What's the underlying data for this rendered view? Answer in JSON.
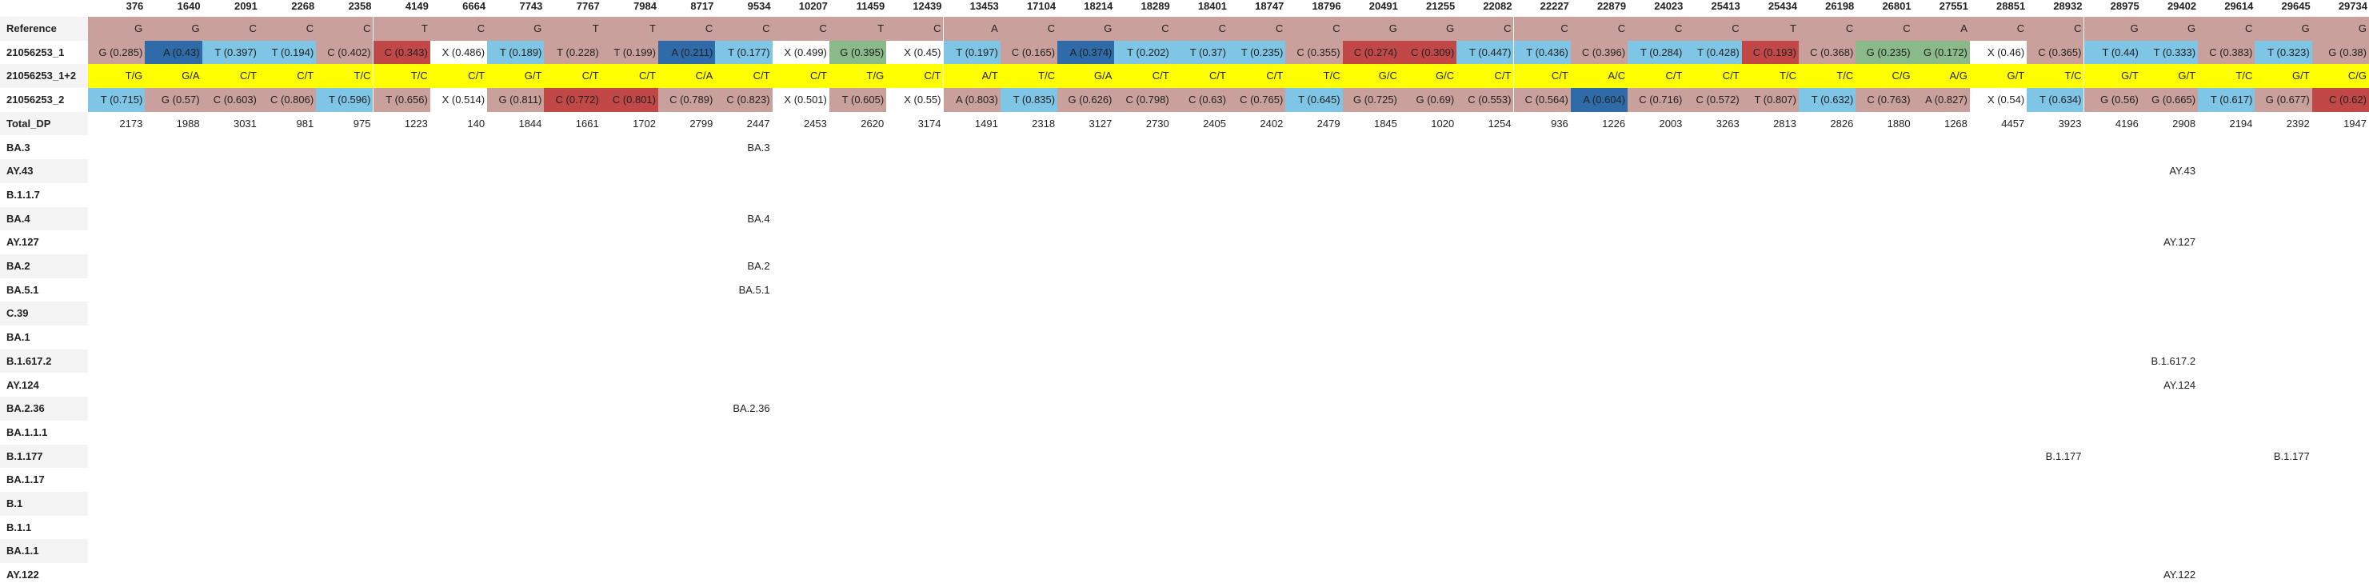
{
  "positions": [
    "376",
    "1640",
    "2091",
    "2268",
    "2358",
    "4149",
    "6664",
    "7743",
    "7767",
    "7984",
    "8717",
    "9534",
    "10207",
    "11459",
    "12439",
    "13453",
    "17104",
    "18214",
    "18289",
    "18401",
    "18747",
    "18796",
    "20491",
    "21255",
    "22082",
    "22227",
    "22879",
    "24023",
    "25413",
    "25434",
    "26198",
    "26801",
    "27551",
    "28851",
    "28932",
    "28975",
    "29402",
    "29614",
    "29645",
    "29734"
  ],
  "reference": {
    "label": "Reference",
    "bases": [
      "G",
      "G",
      "C",
      "C",
      "C",
      "T",
      "C",
      "G",
      "T",
      "T",
      "C",
      "C",
      "C",
      "T",
      "C",
      "A",
      "C",
      "G",
      "C",
      "C",
      "C",
      "C",
      "G",
      "G",
      "C",
      "C",
      "C",
      "C",
      "C",
      "T",
      "C",
      "C",
      "A",
      "C",
      "C",
      "G",
      "G",
      "C",
      "G",
      "G"
    ]
  },
  "sample1": {
    "label": "21056253_1",
    "cells": [
      "G (0.285)",
      "A (0.43)",
      "T (0.397)",
      "T (0.194)",
      "C (0.402)",
      "C (0.343)",
      "X (0.486)",
      "T (0.189)",
      "T (0.228)",
      "T (0.199)",
      "A (0.211)",
      "T (0.177)",
      "X (0.499)",
      "G (0.395)",
      "X (0.45)",
      "T (0.197)",
      "C (0.165)",
      "A (0.374)",
      "T (0.202)",
      "T (0.37)",
      "T (0.235)",
      "C (0.355)",
      "C (0.274)",
      "C (0.309)",
      "T (0.447)",
      "T (0.436)",
      "C (0.396)",
      "T (0.284)",
      "T (0.428)",
      "C (0.193)",
      "C (0.368)",
      "G (0.235)",
      "G (0.172)",
      "X (0.46)",
      "C (0.365)",
      "T (0.44)",
      "T (0.333)",
      "C (0.383)",
      "T (0.323)",
      "G (0.38)"
    ],
    "colors": [
      "P",
      "A",
      "T",
      "T",
      "P",
      "C",
      "X",
      "T",
      "P",
      "P",
      "A",
      "T",
      "X",
      "G",
      "X",
      "T",
      "P",
      "A",
      "T",
      "T",
      "T",
      "P",
      "C",
      "C",
      "T",
      "T",
      "P",
      "T",
      "T",
      "C",
      "P",
      "G",
      "G",
      "X",
      "P",
      "T",
      "T",
      "P",
      "T",
      "P"
    ]
  },
  "combined": {
    "label": "21056253_1+2",
    "cells": [
      "T/G",
      "G/A",
      "C/T",
      "C/T",
      "T/C",
      "T/C",
      "C/T",
      "G/T",
      "C/T",
      "C/T",
      "C/A",
      "C/T",
      "C/T",
      "T/G",
      "C/T",
      "A/T",
      "T/C",
      "G/A",
      "C/T",
      "C/T",
      "C/T",
      "T/C",
      "G/C",
      "G/C",
      "C/T",
      "C/T",
      "A/C",
      "C/T",
      "C/T",
      "T/C",
      "T/C",
      "C/G",
      "A/G",
      "G/T",
      "T/C",
      "G/T",
      "G/T",
      "T/C",
      "G/T",
      "C/G"
    ]
  },
  "sample2": {
    "label": "21056253_2",
    "cells": [
      "T (0.715)",
      "G (0.57)",
      "C (0.603)",
      "C (0.806)",
      "T (0.596)",
      "T (0.656)",
      "X (0.514)",
      "G (0.811)",
      "C (0.772)",
      "C (0.801)",
      "C (0.789)",
      "C (0.823)",
      "X (0.501)",
      "T (0.605)",
      "X (0.55)",
      "A (0.803)",
      "T (0.835)",
      "G (0.626)",
      "C (0.798)",
      "C (0.63)",
      "C (0.765)",
      "T (0.645)",
      "G (0.725)",
      "G (0.69)",
      "C (0.553)",
      "C (0.564)",
      "A (0.604)",
      "C (0.716)",
      "C (0.572)",
      "T (0.807)",
      "T (0.632)",
      "C (0.763)",
      "A (0.827)",
      "X (0.54)",
      "T (0.634)",
      "G (0.56)",
      "G (0.665)",
      "T (0.617)",
      "G (0.677)",
      "C (0.62)"
    ],
    "colors": [
      "T",
      "P",
      "P",
      "P",
      "T",
      "P",
      "X",
      "P",
      "C",
      "C",
      "P",
      "P",
      "X",
      "P",
      "X",
      "P",
      "T",
      "P",
      "P",
      "P",
      "P",
      "T",
      "P",
      "P",
      "P",
      "P",
      "A",
      "P",
      "P",
      "P",
      "T",
      "P",
      "P",
      "X",
      "T",
      "P",
      "P",
      "T",
      "P",
      "C"
    ]
  },
  "total_dp": {
    "label": "Total_DP",
    "values": [
      "2173",
      "1988",
      "3031",
      "981",
      "975",
      "1223",
      "140",
      "1844",
      "1661",
      "1702",
      "2799",
      "2447",
      "2453",
      "2620",
      "3174",
      "1491",
      "2318",
      "3127",
      "2730",
      "2405",
      "2402",
      "2479",
      "1845",
      "1020",
      "1254",
      "936",
      "1226",
      "2003",
      "3263",
      "2813",
      "2826",
      "1880",
      "1268",
      "4457",
      "3923",
      "4196",
      "2908",
      "2194",
      "2392",
      "1947"
    ]
  },
  "lineages": [
    {
      "label": "BA.3",
      "marks": {
        "11": "BA.3"
      }
    },
    {
      "label": "AY.43",
      "marks": {
        "36": "AY.43"
      }
    },
    {
      "label": "B.1.1.7",
      "marks": {}
    },
    {
      "label": "BA.4",
      "marks": {
        "11": "BA.4"
      }
    },
    {
      "label": "AY.127",
      "marks": {
        "36": "AY.127"
      }
    },
    {
      "label": "BA.2",
      "marks": {
        "11": "BA.2"
      }
    },
    {
      "label": "BA.5.1",
      "marks": {
        "11": "BA.5.1"
      }
    },
    {
      "label": "C.39",
      "marks": {}
    },
    {
      "label": "BA.1",
      "marks": {}
    },
    {
      "label": "B.1.617.2",
      "marks": {
        "36": "B.1.617.2"
      }
    },
    {
      "label": "AY.124",
      "marks": {
        "36": "AY.124"
      }
    },
    {
      "label": "BA.2.36",
      "marks": {
        "11": "BA.2.36"
      }
    },
    {
      "label": "BA.1.1.1",
      "marks": {}
    },
    {
      "label": "B.1.177",
      "marks": {
        "34": "B.1.177",
        "38": "B.1.177"
      }
    },
    {
      "label": "BA.1.17",
      "marks": {}
    },
    {
      "label": "B.1",
      "marks": {}
    },
    {
      "label": "B.1.1",
      "marks": {}
    },
    {
      "label": "BA.1.1",
      "marks": {}
    },
    {
      "label": "AY.122",
      "marks": {
        "36": "AY.122"
      }
    }
  ],
  "color_map": {
    "A": "#2e6ba8",
    "T": "#7fc5e6",
    "C": "#c24848",
    "G": "#8ab98a",
    "X": "#ffffff",
    "P": "#c9a09c"
  }
}
